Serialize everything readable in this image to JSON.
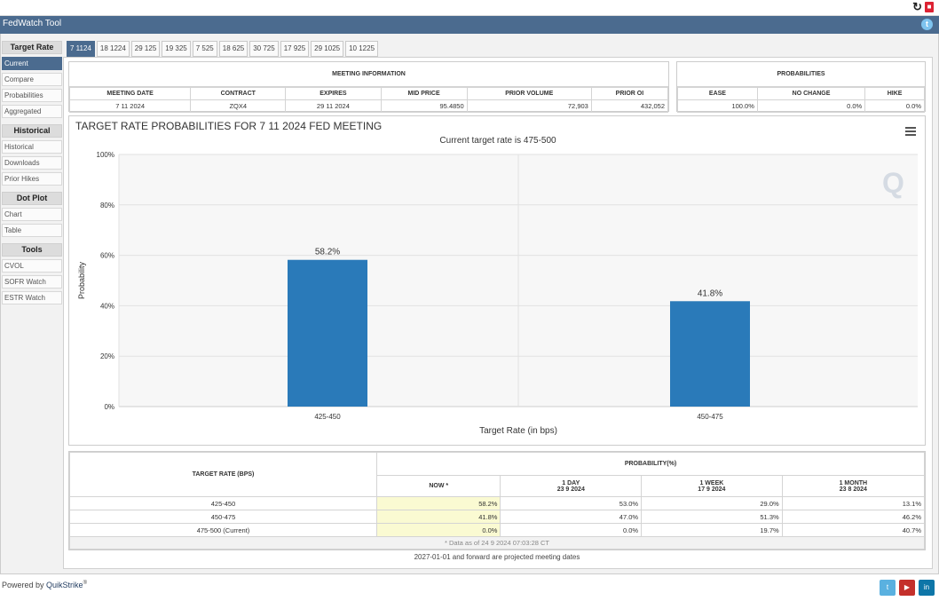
{
  "app": {
    "title": "FedWatch Tool"
  },
  "sidebar": {
    "groups": [
      {
        "header": "Target Rate",
        "items": [
          "Current",
          "Compare",
          "Probabilities",
          "Aggregated"
        ]
      },
      {
        "header": "Historical",
        "items": [
          "Historical",
          "Downloads",
          "Prior Hikes"
        ]
      },
      {
        "header": "Dot Plot",
        "items": [
          "Chart",
          "Table"
        ]
      },
      {
        "header": "Tools",
        "items": [
          "CVOL",
          "SOFR Watch",
          "ESTR Watch"
        ]
      }
    ]
  },
  "tabs": [
    "7 1124",
    "18 1224",
    "29 125",
    "19 325",
    "7 525",
    "18 625",
    "30 725",
    "17 925",
    "29 1025",
    "10 1225"
  ],
  "meeting_info": {
    "title": "MEETING INFORMATION",
    "headers": [
      "MEETING DATE",
      "CONTRACT",
      "EXPIRES",
      "MID PRICE",
      "PRIOR VOLUME",
      "PRIOR OI"
    ],
    "values": [
      "7 11 2024",
      "ZQX4",
      "29 11 2024",
      "95.4850",
      "72,903",
      "432,052"
    ]
  },
  "probabilities": {
    "title": "PROBABILITIES",
    "headers": [
      "EASE",
      "NO CHANGE",
      "HIKE"
    ],
    "values": [
      "100.0%",
      "0.0%",
      "0.0%"
    ]
  },
  "chart_data": {
    "type": "bar",
    "title": "TARGET RATE PROBABILITIES FOR 7 11 2024 FED MEETING",
    "subtitle": "Current target rate is 475-500",
    "categories": [
      "425-450",
      "450-475"
    ],
    "values": [
      58.2,
      41.8
    ],
    "data_labels": [
      "58.2%",
      "41.8%"
    ],
    "xlabel": "Target Rate (in bps)",
    "ylabel": "Probability",
    "ylim": [
      0,
      100
    ],
    "yticks": [
      "0%",
      "20%",
      "40%",
      "60%",
      "80%",
      "100%"
    ],
    "bar_color": "#2a7ab9",
    "grid": true
  },
  "prob_table": {
    "col_header": "TARGET RATE (BPS)",
    "group_header": "PROBABILITY(%)",
    "periods": [
      {
        "label": "NOW *",
        "date": ""
      },
      {
        "label": "1 DAY",
        "date": "23 9 2024"
      },
      {
        "label": "1 WEEK",
        "date": "17 9 2024"
      },
      {
        "label": "1 MONTH",
        "date": "23 8 2024"
      }
    ],
    "rows": [
      {
        "rate": "425-450",
        "vals": [
          "58.2%",
          "53.0%",
          "29.0%",
          "13.1%"
        ]
      },
      {
        "rate": "450-475",
        "vals": [
          "41.8%",
          "47.0%",
          "51.3%",
          "46.2%"
        ]
      },
      {
        "rate": "475-500 (Current)",
        "vals": [
          "0.0%",
          "0.0%",
          "19.7%",
          "40.7%"
        ]
      }
    ],
    "note": "* Data as of 24 9 2024 07:03:28 CT"
  },
  "projected_note": "2027-01-01 and forward are projected meeting dates",
  "footer": {
    "powered_by": "Powered by",
    "brand": "QuikStrike",
    "reg": "®"
  },
  "social": [
    "twitter-icon",
    "youtube-icon",
    "linkedin-icon"
  ]
}
